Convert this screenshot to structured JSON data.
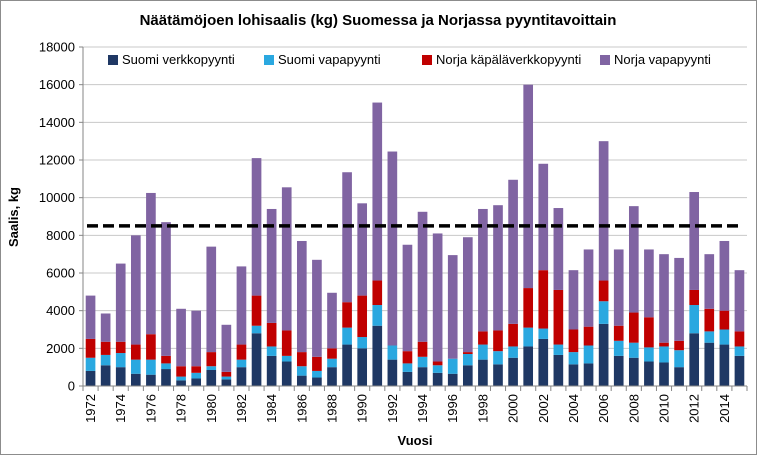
{
  "chart_data": {
    "type": "bar",
    "stacked": true,
    "title": "Näätämöjoen lohisaalis (kg) Suomessa ja Norjassa pyyntitavoittain",
    "xlabel": "Vuosi",
    "ylabel": "Saalis, kg",
    "ylim": [
      0,
      18000
    ],
    "yticks": [
      0,
      2000,
      4000,
      6000,
      8000,
      10000,
      12000,
      14000,
      16000,
      18000
    ],
    "yticks_labels": [
      "0",
      "2000",
      "4000",
      "6000",
      "8000",
      "10000",
      "12000",
      "14000",
      "16000",
      "18000"
    ],
    "xtick_labels": [
      "1972",
      "1974",
      "1976",
      "1978",
      "1980",
      "1982",
      "1984",
      "1986",
      "1988",
      "1990",
      "1992",
      "1994",
      "1996",
      "1998",
      "2000",
      "2002",
      "2004",
      "2006",
      "2008",
      "2010",
      "2012",
      "2014"
    ],
    "grid": "horizontal",
    "legend": "top",
    "reference_line": {
      "value": 8500,
      "style": "dashed"
    },
    "categories": [
      1972,
      1973,
      1974,
      1975,
      1976,
      1977,
      1978,
      1979,
      1980,
      1981,
      1982,
      1983,
      1984,
      1985,
      1986,
      1987,
      1988,
      1989,
      1990,
      1991,
      1992,
      1993,
      1994,
      1995,
      1996,
      1997,
      1998,
      1999,
      2000,
      2001,
      2002,
      2003,
      2004,
      2005,
      2006,
      2007,
      2008,
      2009,
      2010,
      2011,
      2012,
      2013,
      2014,
      2015
    ],
    "series": [
      {
        "name": "Suomi verkkopyynti",
        "color": "#1f3864",
        "values": [
          800,
          1100,
          1000,
          650,
          600,
          900,
          300,
          400,
          850,
          350,
          1000,
          2800,
          1600,
          1300,
          550,
          450,
          1000,
          2200,
          2000,
          3200,
          1400,
          750,
          1000,
          700,
          650,
          1100,
          1400,
          1150,
          1500,
          2100,
          2500,
          1650,
          1150,
          1200,
          3300,
          1600,
          1500,
          1300,
          1250,
          1000,
          2800,
          2300,
          2200,
          1600
        ]
      },
      {
        "name": "Suomi vapapyynti",
        "color": "#2aa8e0",
        "values": [
          700,
          550,
          750,
          750,
          800,
          300,
          200,
          300,
          200,
          150,
          400,
          400,
          500,
          300,
          500,
          350,
          450,
          900,
          600,
          1100,
          750,
          450,
          550,
          400,
          800,
          600,
          800,
          700,
          600,
          1000,
          550,
          550,
          650,
          950,
          1200,
          800,
          800,
          750,
          850,
          900,
          1500,
          600,
          800,
          500
        ]
      },
      {
        "name": "Norja käpäläverkkopyynti",
        "color": "#c00000",
        "values": [
          1000,
          700,
          600,
          800,
          1350,
          400,
          550,
          350,
          750,
          250,
          800,
          1600,
          1250,
          1350,
          750,
          750,
          550,
          1350,
          2200,
          1300,
          0,
          650,
          800,
          200,
          0,
          100,
          700,
          1100,
          1200,
          2100,
          3100,
          2900,
          1200,
          1000,
          1100,
          800,
          1600,
          1600,
          200,
          500,
          800,
          1200,
          1000,
          800
        ]
      },
      {
        "name": "Norja vapapyynti",
        "color": "#8064a2",
        "values": [
          2300,
          1500,
          4150,
          5800,
          7500,
          7100,
          3050,
          2950,
          5600,
          2500,
          4150,
          7300,
          6050,
          7600,
          5900,
          5150,
          2950,
          6900,
          4900,
          9450,
          10300,
          5650,
          6900,
          6800,
          5500,
          6100,
          6500,
          6650,
          7650,
          10800,
          5650,
          4350,
          3150,
          4100,
          7400,
          4050,
          5650,
          3600,
          4700,
          4400,
          5200,
          2900,
          3700,
          3250
        ]
      }
    ]
  }
}
